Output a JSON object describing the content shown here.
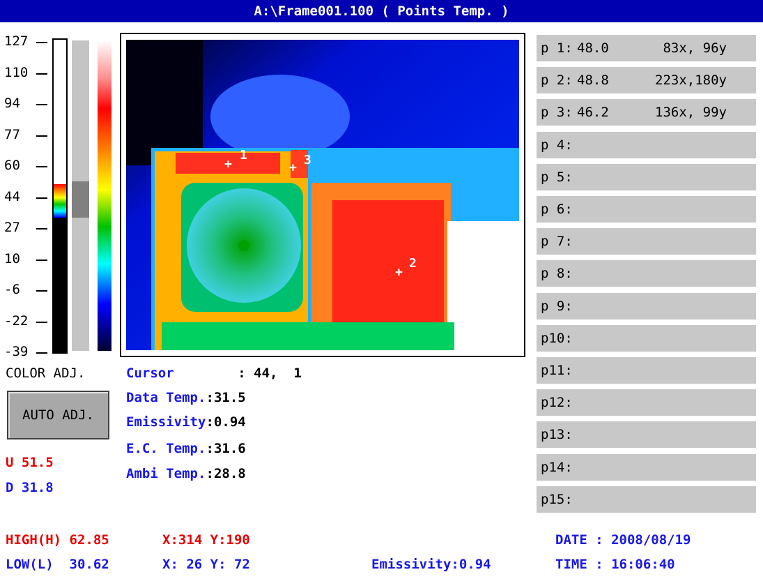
{
  "title": "A:\\Frame001.100 ( Points Temp. )",
  "scale": {
    "labels": [
      127,
      110,
      94,
      77,
      60,
      44,
      27,
      10,
      -6,
      -22,
      -39
    ]
  },
  "image": {
    "markers": [
      "1",
      "2",
      "3"
    ]
  },
  "points": [
    {
      "label": "p 1:",
      "temp": "48.0",
      "position": " 83x, 96y"
    },
    {
      "label": "p 2:",
      "temp": "48.8",
      "position": "223x,180y"
    },
    {
      "label": "p 3:",
      "temp": "46.2",
      "position": "136x, 99y"
    },
    {
      "label": "p 4:"
    },
    {
      "label": "p 5:"
    },
    {
      "label": "p 6:"
    },
    {
      "label": "p 7:"
    },
    {
      "label": "p 8:"
    },
    {
      "label": "p 9:"
    },
    {
      "label": "p10:"
    },
    {
      "label": "p11:"
    },
    {
      "label": "p12:"
    },
    {
      "label": "p13:"
    },
    {
      "label": "p14:"
    },
    {
      "label": "p15:"
    }
  ],
  "controls": {
    "color_adj": "COLOR ADJ.",
    "auto_adj": "AUTO ADJ.",
    "upper": "U 51.5",
    "lower": "D 31.8"
  },
  "info": [
    {
      "label": "Cursor",
      "value": "    : 44,  1"
    },
    {
      "label": "Data Temp.",
      "value": ":31.5"
    },
    {
      "label": "Emissivity",
      "value": ":0.94"
    },
    {
      "label": "E.C. Temp.",
      "value": ":31.6"
    },
    {
      "label": "Ambi Temp.",
      "value": ":28.8"
    }
  ],
  "footer": {
    "high": "HIGH(H) 62.85",
    "high_pos": "X:314 Y:190",
    "low": "LOW(L)  30.62",
    "low_pos": "X: 26 Y: 72",
    "emissivity": "Emissivity:0.94",
    "date": "DATE : 2008/08/19",
    "time": "TIME : 16:06:40"
  }
}
